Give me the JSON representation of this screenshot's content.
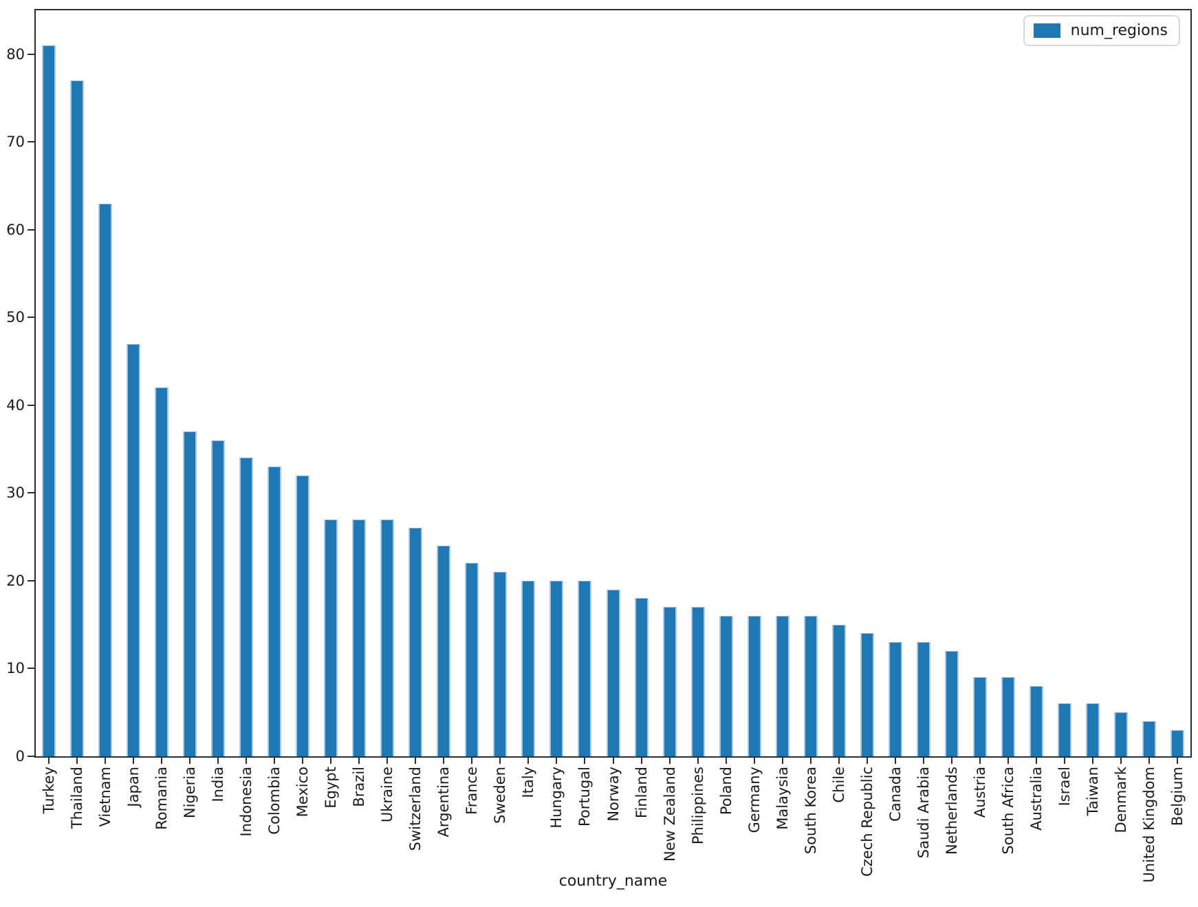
{
  "chart_data": {
    "type": "bar",
    "title": "",
    "xlabel": "country_name",
    "ylabel": "",
    "categories": [
      "Turkey",
      "Thailand",
      "Vietnam",
      "Japan",
      "Romania",
      "Nigeria",
      "India",
      "Indonesia",
      "Colombia",
      "Mexico",
      "Egypt",
      "Brazil",
      "Ukraine",
      "Switzerland",
      "Argentina",
      "France",
      "Sweden",
      "Italy",
      "Hungary",
      "Portugal",
      "Norway",
      "Finland",
      "New Zealand",
      "Philippines",
      "Poland",
      "Germany",
      "Malaysia",
      "South Korea",
      "Chile",
      "Czech Republic",
      "Canada",
      "Saudi Arabia",
      "Netherlands",
      "Austria",
      "South Africa",
      "Australia",
      "Israel",
      "Taiwan",
      "Denmark",
      "United Kingdom",
      "Belgium"
    ],
    "series": [
      {
        "name": "num_regions",
        "values": [
          81,
          77,
          63,
          47,
          42,
          37,
          36,
          34,
          33,
          32,
          27,
          27,
          27,
          26,
          24,
          22,
          21,
          20,
          20,
          20,
          19,
          18,
          17,
          17,
          16,
          16,
          16,
          16,
          15,
          14,
          13,
          13,
          12,
          9,
          9,
          8,
          6,
          6,
          5,
          4,
          3
        ]
      }
    ],
    "ylim": [
      0,
      85
    ],
    "yticks": [
      0,
      10,
      20,
      30,
      40,
      50,
      60,
      70,
      80
    ],
    "x_tick_rotation": 90,
    "grid": false,
    "bar_color": "#1f77b4",
    "bar_edge_color": "#a9c9e4",
    "legend": {
      "position": "upper right",
      "entries": [
        "num_regions"
      ]
    }
  }
}
